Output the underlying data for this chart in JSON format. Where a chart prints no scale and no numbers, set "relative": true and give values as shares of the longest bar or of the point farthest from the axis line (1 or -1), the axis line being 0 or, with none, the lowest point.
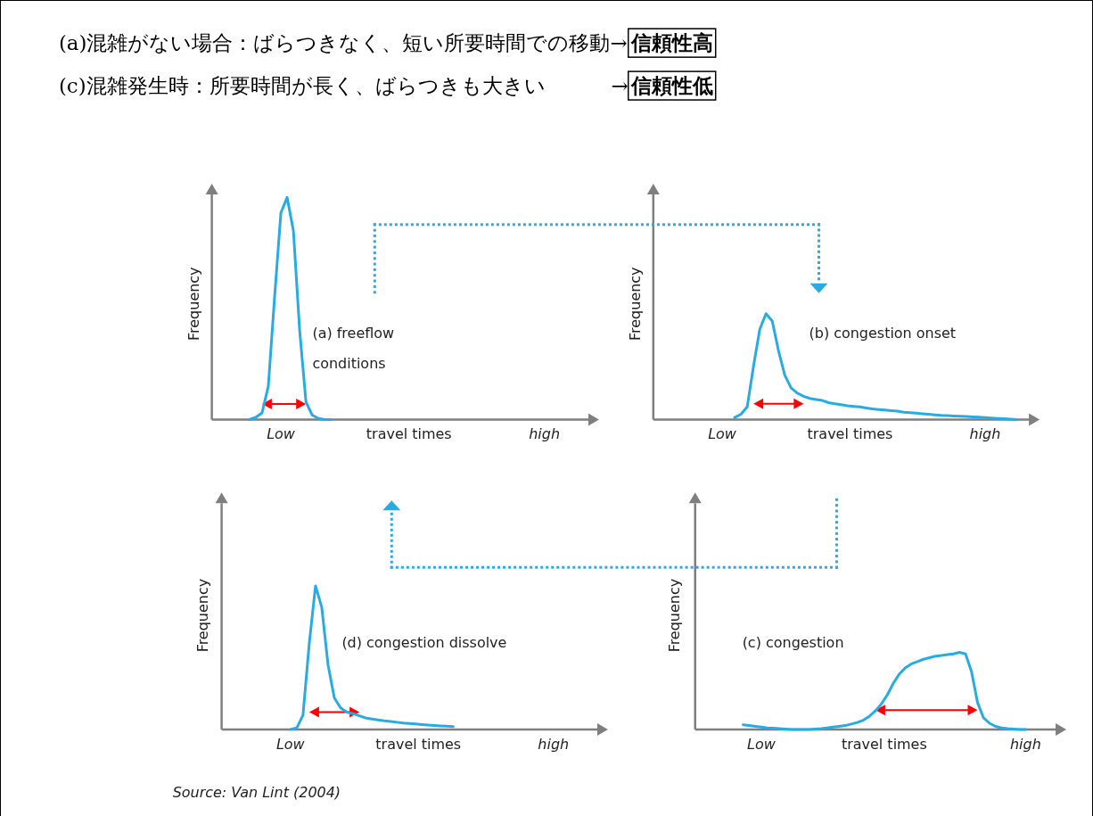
{
  "chart_data": [
    {
      "type": "other",
      "annotations": [
        "(a)混雑がない場合：ばらつきなく、短い所要時間での移動→",
        "信頼性高",
        "(c)混雑発生時：所要時間が長く、ばらつきも大きい",
        "→",
        "信頼性低"
      ]
    },
    {
      "type": "line",
      "relative": true,
      "xlabel": "travel times",
      "ylabel": "Frequency",
      "annotations": [
        "(a) freeflow\nconditions"
      ],
      "categories": [
        null,
        null,
        null,
        null,
        null,
        null,
        null,
        null,
        null,
        null,
        null,
        "Low",
        null,
        null,
        null,
        null,
        null,
        null,
        null,
        null,
        null,
        null,
        null,
        null,
        null,
        null,
        null,
        null,
        null,
        null,
        null,
        null,
        null,
        null,
        null,
        null,
        null,
        null,
        null,
        null,
        null,
        null,
        null,
        null,
        null,
        null,
        null,
        null,
        null,
        null,
        null,
        null,
        null,
        "high",
        null,
        null,
        null,
        null,
        null,
        null,
        null
      ],
      "series": [
        {
          "color": "#29abe2",
          "values": [
            null,
            null,
            null,
            null,
            null,
            null,
            0,
            0.01,
            0.03,
            0.15,
            0.55,
            0.93,
            1,
            0.85,
            0.4,
            0.08,
            0.02,
            0.005,
            0,
            0,
            null,
            null,
            null,
            null,
            null,
            null,
            null,
            null,
            null,
            null,
            null,
            null,
            null,
            null,
            null,
            null,
            null,
            null,
            null,
            null,
            null,
            null,
            null,
            null,
            null,
            null,
            null,
            null,
            null,
            null,
            null,
            null,
            null,
            null,
            null,
            null,
            null,
            null,
            null,
            null,
            null
          ]
        }
      ]
    },
    {
      "type": "line",
      "relative": true,
      "xlabel": "travel times",
      "ylabel": "Frequency",
      "annotations": [
        "(b) congestion onset"
      ],
      "categories": [
        null,
        null,
        null,
        null,
        null,
        null,
        null,
        null,
        null,
        null,
        null,
        "Low",
        null,
        null,
        null,
        null,
        null,
        null,
        null,
        null,
        null,
        null,
        null,
        null,
        null,
        null,
        null,
        null,
        null,
        null,
        null,
        null,
        null,
        null,
        null,
        null,
        null,
        null,
        null,
        null,
        null,
        null,
        null,
        null,
        null,
        null,
        null,
        null,
        null,
        null,
        null,
        null,
        null,
        "high",
        null,
        null,
        null,
        null,
        null,
        null,
        null
      ],
      "series": [
        {
          "color": "#29abe2",
          "values": [
            null,
            null,
            null,
            null,
            null,
            null,
            null,
            null,
            null,
            null,
            null,
            null,
            null,
            0.02,
            0.05,
            0.12,
            0.5,
            0.85,
            1,
            0.93,
            0.65,
            0.42,
            0.3,
            0.25,
            0.22,
            0.2,
            0.19,
            0.18,
            0.16,
            0.15,
            0.14,
            0.13,
            0.125,
            0.12,
            0.11,
            0.1,
            0.095,
            0.09,
            0.085,
            0.08,
            0.07,
            0.065,
            0.06,
            0.055,
            0.05,
            0.045,
            0.04,
            0.037,
            0.034,
            0.032,
            0.03,
            0.026,
            0.022,
            0.018,
            0.015,
            0.011,
            0.008,
            0.004,
            0,
            null,
            null
          ]
        }
      ]
    },
    {
      "type": "line",
      "relative": true,
      "xlabel": "travel times",
      "ylabel": "Frequency",
      "annotations": [
        "(d) congestion dissolve",
        "Source: Van Lint (2004)"
      ],
      "categories": [
        null,
        null,
        null,
        null,
        null,
        null,
        null,
        null,
        null,
        null,
        null,
        "Low",
        null,
        null,
        null,
        null,
        null,
        null,
        null,
        null,
        null,
        null,
        null,
        null,
        null,
        null,
        null,
        null,
        null,
        null,
        null,
        null,
        null,
        null,
        null,
        null,
        null,
        null,
        null,
        null,
        null,
        null,
        null,
        null,
        null,
        null,
        null,
        null,
        null,
        null,
        null,
        null,
        null,
        "high",
        null,
        null,
        null,
        null,
        null,
        null,
        null
      ],
      "series": [
        {
          "color": "#29abe2",
          "values": [
            null,
            null,
            null,
            null,
            null,
            null,
            null,
            null,
            null,
            null,
            null,
            0,
            0.01,
            0.1,
            0.6,
            1,
            0.85,
            0.45,
            0.22,
            0.15,
            0.12,
            0.11,
            0.095,
            0.08,
            0.073,
            0.066,
            0.06,
            0.055,
            0.05,
            0.045,
            0.042,
            0.038,
            0.034,
            0.03,
            0.028,
            0.025,
            0.022,
            0.02,
            null,
            null,
            null,
            null,
            null,
            null,
            null,
            null,
            null,
            null,
            null,
            null,
            null,
            null,
            null,
            null,
            null,
            null,
            null,
            null,
            null,
            null,
            null
          ]
        }
      ]
    },
    {
      "type": "line",
      "relative": true,
      "xlabel": "travel times",
      "ylabel": "Frequency",
      "annotations": [
        "(c) congestion"
      ],
      "categories": [
        null,
        null,
        null,
        null,
        null,
        null,
        null,
        null,
        null,
        null,
        null,
        "Low",
        null,
        null,
        null,
        null,
        null,
        null,
        null,
        null,
        null,
        null,
        null,
        null,
        null,
        null,
        null,
        null,
        null,
        null,
        null,
        null,
        null,
        null,
        null,
        null,
        null,
        null,
        null,
        null,
        null,
        null,
        null,
        null,
        null,
        null,
        null,
        null,
        null,
        null,
        null,
        null,
        null,
        null,
        null,
        "high",
        null,
        null,
        null,
        null,
        null
      ],
      "series": [
        {
          "color": "#29abe2",
          "values": [
            null,
            null,
            null,
            null,
            null,
            null,
            null,
            null,
            0.06,
            0.05,
            0.04,
            0.03,
            0.02,
            0.015,
            0.01,
            0.005,
            0,
            0,
            0,
            0,
            0.005,
            0.01,
            0.02,
            0.03,
            0.04,
            0.05,
            0.07,
            0.09,
            0.12,
            0.17,
            0.24,
            0.33,
            0.45,
            0.6,
            0.72,
            0.8,
            0.85,
            0.88,
            0.91,
            0.93,
            0.95,
            0.96,
            0.97,
            0.98,
            1,
            0.98,
            0.75,
            0.35,
            0.15,
            0.08,
            0.04,
            0.02,
            0.01,
            0.005,
            0,
            0,
            null,
            null,
            null,
            null,
            null
          ]
        }
      ]
    }
  ]
}
